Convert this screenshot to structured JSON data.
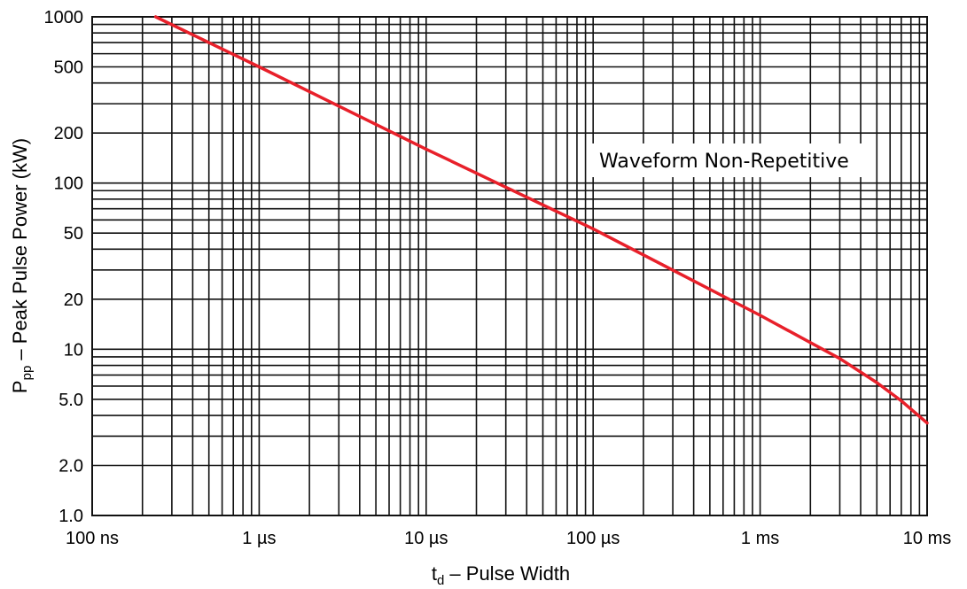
{
  "chart_data": {
    "type": "line",
    "x_scale": "log",
    "y_scale": "log",
    "xlim": [
      1e-07,
      0.01
    ],
    "ylim": [
      1,
      1000
    ],
    "grid": true,
    "x_tick_values": [
      1e-07,
      1e-06,
      1e-05,
      0.0001,
      0.001,
      0.01
    ],
    "x_tick_labels": [
      "100 ns",
      "1 µs",
      "10 µs",
      "100 µs",
      "1 ms",
      "10 ms"
    ],
    "y_tick_values": [
      1,
      2,
      5,
      10,
      20,
      50,
      100,
      200,
      500,
      1000
    ],
    "y_tick_labels": [
      "1.0",
      "2.0",
      "5.0",
      "10",
      "20",
      "50",
      "100",
      "200",
      "500",
      "1000"
    ],
    "xlabel": {
      "main": "t",
      "sub": "d",
      "rest": " – Pulse Width"
    },
    "ylabel": {
      "main": "P",
      "sub": "pp",
      "rest": " – Peak Pulse Power (kW)"
    },
    "annotation": "Waveform Non-Repetitive",
    "series": [
      {
        "color": "#e8202a",
        "x": [
          2.4e-07,
          1e-06,
          1e-05,
          0.0001,
          0.001,
          0.003,
          0.005,
          0.007,
          0.01
        ],
        "y": [
          1000,
          500,
          160,
          53,
          16,
          8.8,
          6.3,
          4.9,
          3.6
        ]
      }
    ]
  }
}
